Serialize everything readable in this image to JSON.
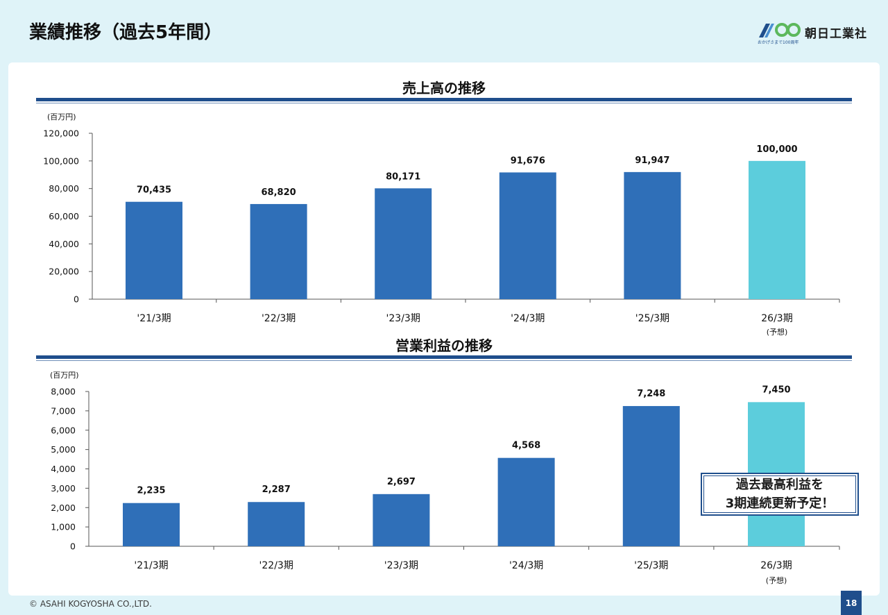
{
  "page": {
    "title": "業績推移（過去5年間）",
    "copyright": "© ASAHI KOGYOSHA CO.,LTD.",
    "page_number": "18"
  },
  "logo": {
    "company_name": "朝日工業社",
    "tagline": "おかげさまで100周年"
  },
  "callout": {
    "line1": "過去最高利益を",
    "line2": "3期連続更新予定！"
  },
  "colors": {
    "actual_bar": "#2f6fb8",
    "forecast_bar": "#5ccddc",
    "brand": "#1f4e8c",
    "background": "#dff3f8"
  },
  "chart_data": [
    {
      "type": "bar",
      "title": "売上高の推移",
      "unit": "(百万円)",
      "categories": [
        "'21/3期",
        "'22/3期",
        "'23/3期",
        "'24/3期",
        "'25/3期",
        "26/3期"
      ],
      "category_notes": [
        "",
        "",
        "",
        "",
        "",
        "(予想)"
      ],
      "values": [
        70435,
        68820,
        80171,
        91676,
        91947,
        100000
      ],
      "value_labels": [
        "70,435",
        "68,820",
        "80,171",
        "91,676",
        "91,947",
        "100,000"
      ],
      "forecast": [
        false,
        false,
        false,
        false,
        false,
        true
      ],
      "ylim": [
        0,
        120000
      ],
      "yticks": [
        0,
        20000,
        40000,
        60000,
        80000,
        100000,
        120000
      ],
      "ytick_labels": [
        "0",
        "20,000",
        "40,000",
        "60,000",
        "80,000",
        "100,000",
        "120,000"
      ],
      "grid": false
    },
    {
      "type": "bar",
      "title": "営業利益の推移",
      "unit": "(百万円)",
      "categories": [
        "'21/3期",
        "'22/3期",
        "'23/3期",
        "'24/3期",
        "'25/3期",
        "26/3期"
      ],
      "category_notes": [
        "",
        "",
        "",
        "",
        "",
        "(予想)"
      ],
      "values": [
        2235,
        2287,
        2697,
        4568,
        7248,
        7450
      ],
      "value_labels": [
        "2,235",
        "2,287",
        "2,697",
        "4,568",
        "7,248",
        "7,450"
      ],
      "forecast": [
        false,
        false,
        false,
        false,
        false,
        true
      ],
      "ylim": [
        0,
        8000
      ],
      "yticks": [
        0,
        1000,
        2000,
        3000,
        4000,
        5000,
        6000,
        7000,
        8000
      ],
      "ytick_labels": [
        "0",
        "1,000",
        "2,000",
        "3,000",
        "4,000",
        "5,000",
        "6,000",
        "7,000",
        "8,000"
      ],
      "grid": false
    }
  ]
}
